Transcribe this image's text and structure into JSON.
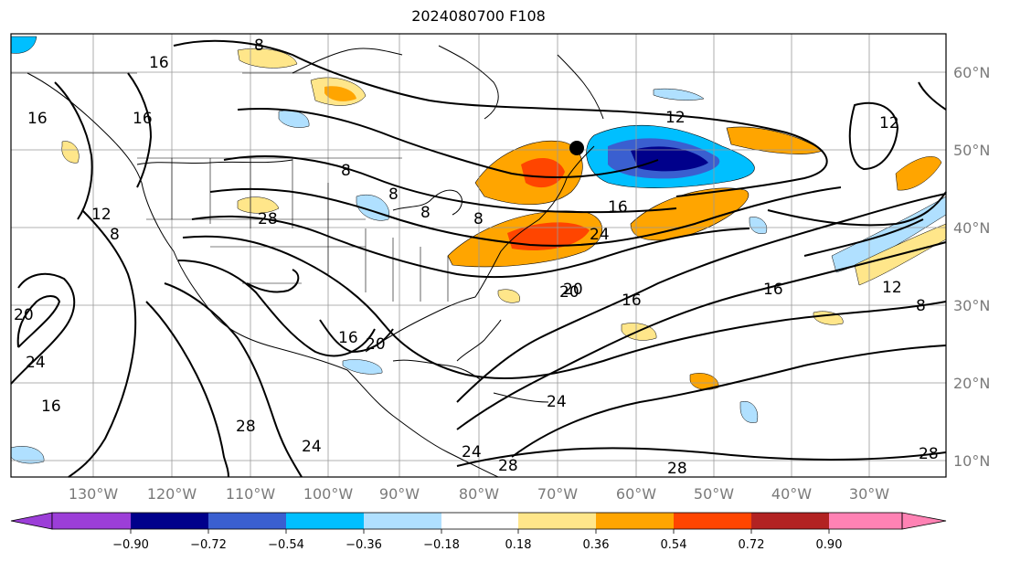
{
  "title": "2024080700 F108",
  "map": {
    "lon_labels": [
      "130°W",
      "120°W",
      "110°W",
      "100°W",
      "90°W",
      "80°W",
      "70°W",
      "60°W",
      "50°W",
      "40°W",
      "30°W"
    ],
    "lat_labels": [
      "60°N",
      "50°N",
      "40°N",
      "30°N",
      "20°N",
      "10°N"
    ],
    "contour_labels": [
      "16",
      "8",
      "16",
      "16",
      "12",
      "8",
      "28",
      "8",
      "8",
      "8",
      "8",
      "12",
      "16",
      "24",
      "20",
      "16",
      "16",
      "12",
      "8",
      "12",
      "20",
      "24",
      "16",
      "20",
      "28",
      "24",
      "24",
      "28",
      "28",
      "28",
      "24",
      "20",
      "16"
    ],
    "marker": "black-dot"
  },
  "colorbar": {
    "tick_labels": [
      "−0.90",
      "−0.72",
      "−0.54",
      "−0.36",
      "−0.18",
      "0.18",
      "0.36",
      "0.54",
      "0.72",
      "0.90"
    ],
    "colors": [
      "#9c3ed8",
      "#00008b",
      "#3a5fd0",
      "#00bfff",
      "#b0e0ff",
      "#ffffff",
      "#ffe68a",
      "#ffa500",
      "#ff4500",
      "#b22222",
      "#ff82b4"
    ]
  }
}
